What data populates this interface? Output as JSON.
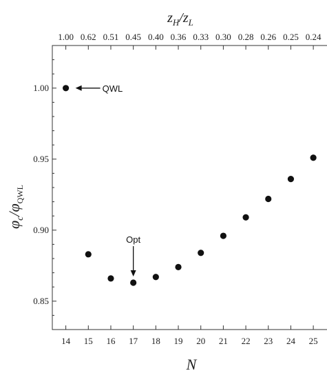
{
  "chart_data": {
    "type": "scatter",
    "xlabel": "N",
    "ylabel": "φc/φQWL",
    "ylabel_main": "φ",
    "ylabel_main_sub": "c",
    "ylabel_slash": "/φ",
    "ylabel_den_sub": "QWL",
    "top_label": "zH/zL",
    "top_label_a": "z",
    "top_label_a_sub": "H",
    "top_label_slash": "/z",
    "top_label_b_sub": "L",
    "xlim": [
      13.4,
      25.7
    ],
    "ylim": [
      0.83,
      1.03
    ],
    "x_ticks": [
      14,
      15,
      16,
      17,
      18,
      19,
      20,
      21,
      22,
      23,
      24,
      25
    ],
    "x_tick_labels": [
      "14",
      "15",
      "16",
      "17",
      "18",
      "19",
      "20",
      "21",
      "22",
      "23",
      "24",
      "25"
    ],
    "y_ticks": [
      0.85,
      0.9,
      0.95,
      1.0
    ],
    "y_tick_labels": [
      "0.85",
      "0.90",
      "0.95",
      "1.00"
    ],
    "top_tick_labels": [
      "1.00",
      "0.62",
      "0.51",
      "0.45",
      "0.40",
      "0.36",
      "0.33",
      "0.30",
      "0.28",
      "0.26",
      "0.25",
      "0.24"
    ],
    "points": [
      {
        "x": 14,
        "y": 1.0
      },
      {
        "x": 15,
        "y": 0.883
      },
      {
        "x": 16,
        "y": 0.866
      },
      {
        "x": 17,
        "y": 0.863
      },
      {
        "x": 18,
        "y": 0.867
      },
      {
        "x": 19,
        "y": 0.874
      },
      {
        "x": 20,
        "y": 0.884
      },
      {
        "x": 21,
        "y": 0.896
      },
      {
        "x": 22,
        "y": 0.909
      },
      {
        "x": 23,
        "y": 0.922
      },
      {
        "x": 24,
        "y": 0.936
      },
      {
        "x": 25,
        "y": 0.951
      }
    ],
    "annotations": [
      {
        "text": "QWL",
        "x": 14,
        "y": 1.0,
        "arrow": "left"
      },
      {
        "text": "Opt",
        "x": 17,
        "y": 0.863,
        "arrow": "down"
      }
    ],
    "grid": false,
    "marker_color": "#111111"
  }
}
